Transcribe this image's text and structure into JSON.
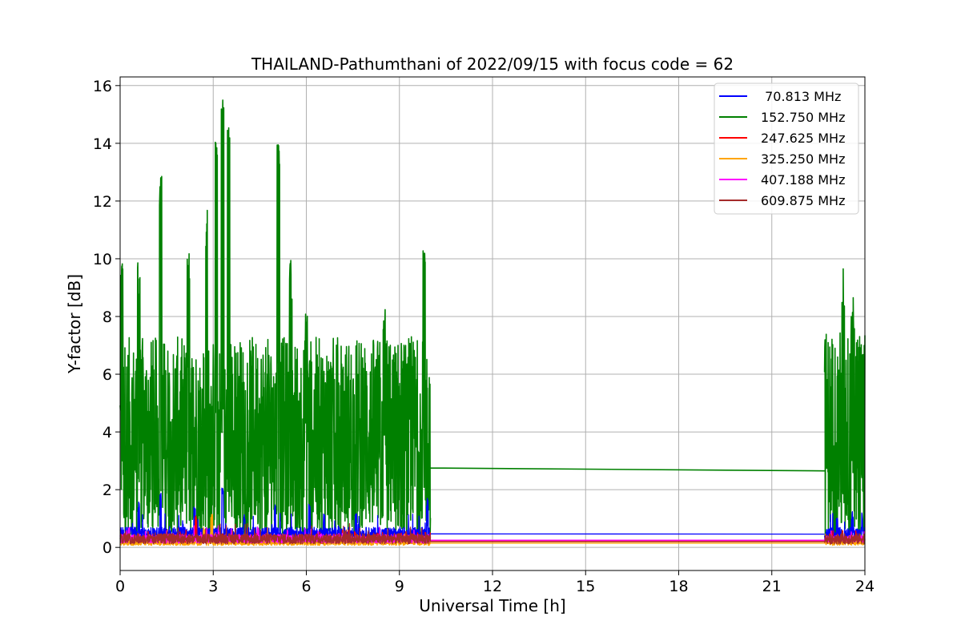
{
  "chart_data": {
    "type": "line",
    "title": "THAILAND-Pathumthani of 2022/09/15 with focus code = 62",
    "xlabel": "Universal Time [h]",
    "ylabel": "Y-factor [dB]",
    "xlim": [
      0,
      24
    ],
    "ylim": [
      -0.8,
      16.3
    ],
    "xticks": [
      0,
      3,
      6,
      9,
      12,
      15,
      18,
      21,
      24
    ],
    "yticks": [
      0,
      2,
      4,
      6,
      8,
      10,
      12,
      14,
      16
    ],
    "grid": true,
    "legend_position": "top-right",
    "series": [
      {
        "name": " 70.813 MHz",
        "color": "#0000ff",
        "segments": [
          {
            "x_start": 0.0,
            "x_end": 10.0,
            "baseline": 0.45,
            "amplitude": 0.25,
            "spikes": [
              [
                0.6,
                1.6
              ],
              [
                1.3,
                1.9
              ],
              [
                2.4,
                1.4
              ],
              [
                3.3,
                2.1
              ],
              [
                4.0,
                1.2
              ],
              [
                5.0,
                1.5
              ],
              [
                6.1,
                1.5
              ],
              [
                7.6,
                1.2
              ],
              [
                9.9,
                1.7
              ]
            ]
          },
          {
            "x_start": 10.0,
            "x_end": 22.7,
            "y_start": 0.47,
            "y_end": 0.46
          },
          {
            "x_start": 22.7,
            "x_end": 24.0,
            "baseline": 0.45,
            "amplitude": 0.25,
            "spikes": [
              [
                23.1,
                1.1
              ],
              [
                23.6,
                1.3
              ],
              [
                23.9,
                1.2
              ]
            ]
          }
        ]
      },
      {
        "name": "152.750 MHz",
        "color": "#008000",
        "segments": [
          {
            "x_start": 0.0,
            "x_end": 10.0,
            "low": 0.4,
            "high": 7.3,
            "peaks": [
              [
                0.05,
                10.3
              ],
              [
                0.6,
                10.0
              ],
              [
                1.3,
                12.9
              ],
              [
                2.2,
                10.3
              ],
              [
                2.8,
                11.9
              ],
              [
                3.1,
                14.6
              ],
              [
                3.3,
                15.5
              ],
              [
                3.5,
                14.8
              ],
              [
                5.1,
                14.1
              ],
              [
                5.5,
                10.0
              ],
              [
                6.0,
                8.5
              ],
              [
                7.0,
                7.7
              ],
              [
                8.5,
                8.4
              ],
              [
                9.8,
                10.9
              ]
            ]
          },
          {
            "x_start": 10.0,
            "x_end": 22.7,
            "y_start": 2.75,
            "y_end": 2.65
          },
          {
            "x_start": 22.7,
            "x_end": 24.0,
            "low": 0.2,
            "high": 7.6,
            "peaks": [
              [
                23.3,
                9.7
              ],
              [
                23.6,
                8.8
              ],
              [
                23.9,
                7.8
              ]
            ]
          }
        ]
      },
      {
        "name": "247.625 MHz",
        "color": "#ff0000",
        "segments": [
          {
            "x_start": 0.0,
            "x_end": 10.0,
            "baseline": 0.25,
            "amplitude": 0.12,
            "spikes": [
              [
                2.45,
                1.1
              ],
              [
                8.3,
                0.5
              ]
            ]
          },
          {
            "x_start": 10.0,
            "x_end": 22.7,
            "y_start": 0.22,
            "y_end": 0.22
          },
          {
            "x_start": 22.7,
            "x_end": 24.0,
            "baseline": 0.25,
            "amplitude": 0.12,
            "spikes": []
          }
        ]
      },
      {
        "name": "325.250 MHz",
        "color": "#ffa500",
        "segments": [
          {
            "x_start": 0.0,
            "x_end": 10.0,
            "baseline": 0.17,
            "amplitude": 0.1,
            "spikes": [
              [
                2.7,
                0.7
              ],
              [
                2.95,
                1.2
              ]
            ]
          },
          {
            "x_start": 10.0,
            "x_end": 22.7,
            "y_start": 0.15,
            "y_end": 0.15
          },
          {
            "x_start": 22.7,
            "x_end": 24.0,
            "baseline": 0.17,
            "amplitude": 0.1,
            "spikes": []
          }
        ]
      },
      {
        "name": "407.188 MHz",
        "color": "#ff00ff",
        "segments": [
          {
            "x_start": 0.0,
            "x_end": 10.0,
            "baseline": 0.3,
            "amplitude": 0.15,
            "spikes": [
              [
                0.2,
                0.6
              ],
              [
                7.0,
                0.45
              ]
            ]
          },
          {
            "x_start": 10.0,
            "x_end": 22.7,
            "y_start": 0.25,
            "y_end": 0.25
          },
          {
            "x_start": 22.7,
            "x_end": 24.0,
            "baseline": 0.3,
            "amplitude": 0.12,
            "spikes": []
          }
        ]
      },
      {
        "name": "609.875 MHz",
        "color": "#a52a2a",
        "segments": [
          {
            "x_start": 0.0,
            "x_end": 10.0,
            "baseline": 0.3,
            "amplitude": 0.18,
            "spikes": [
              [
                0.3,
                0.55
              ],
              [
                1.5,
                0.5
              ]
            ]
          },
          {
            "x_start": 10.0,
            "x_end": 22.7,
            "y_start": 0.2,
            "y_end": 0.2
          },
          {
            "x_start": 22.7,
            "x_end": 24.0,
            "baseline": 0.3,
            "amplitude": 0.18,
            "spikes": []
          }
        ]
      }
    ]
  }
}
